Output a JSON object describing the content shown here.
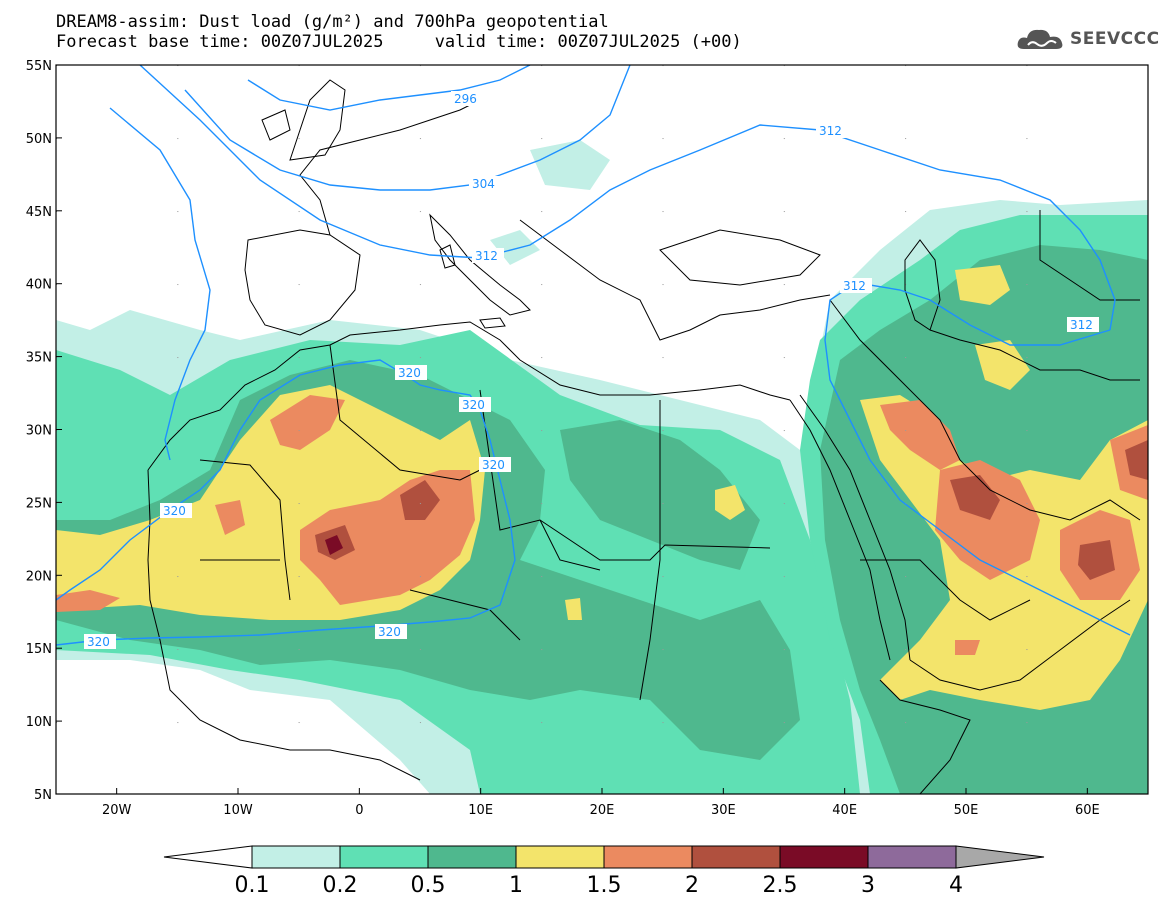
{
  "title": {
    "line1": "DREAM8-assim: Dust load (g/m²) and 700hPa geopotential",
    "line2": "Forecast base time: 00Z07JUL2025     valid time: 00Z07JUL2025 (+00)"
  },
  "logo": {
    "text": "SEEVCCC",
    "icon": "cloud-logo-icon"
  },
  "axes": {
    "lat_labels": [
      "55N",
      "50N",
      "45N",
      "40N",
      "35N",
      "30N",
      "25N",
      "20N",
      "15N",
      "10N",
      "5N"
    ],
    "lon_labels": [
      "20W",
      "10W",
      "0",
      "10E",
      "20E",
      "30E",
      "40E",
      "50E",
      "60E"
    ],
    "lat_range": [
      5,
      55
    ],
    "lon_range": [
      -25,
      65
    ]
  },
  "colorbar": {
    "labels": [
      "0.1",
      "0.2",
      "0.5",
      "1",
      "1.5",
      "2",
      "2.5",
      "3",
      "4"
    ],
    "colors": [
      "#c2efe6",
      "#5fe0b4",
      "#4fb88e",
      "#f3e46b",
      "#eb8a60",
      "#b0503e",
      "#7a0b26",
      "#8e6a9b"
    ],
    "under_color": "#ffffff",
    "over_color": "#a8a8a8"
  },
  "contour_labels": [
    "296",
    "304",
    "312",
    "312",
    "312",
    "320",
    "320",
    "320",
    "320",
    "320"
  ],
  "contour_color": "#1e90ff"
}
